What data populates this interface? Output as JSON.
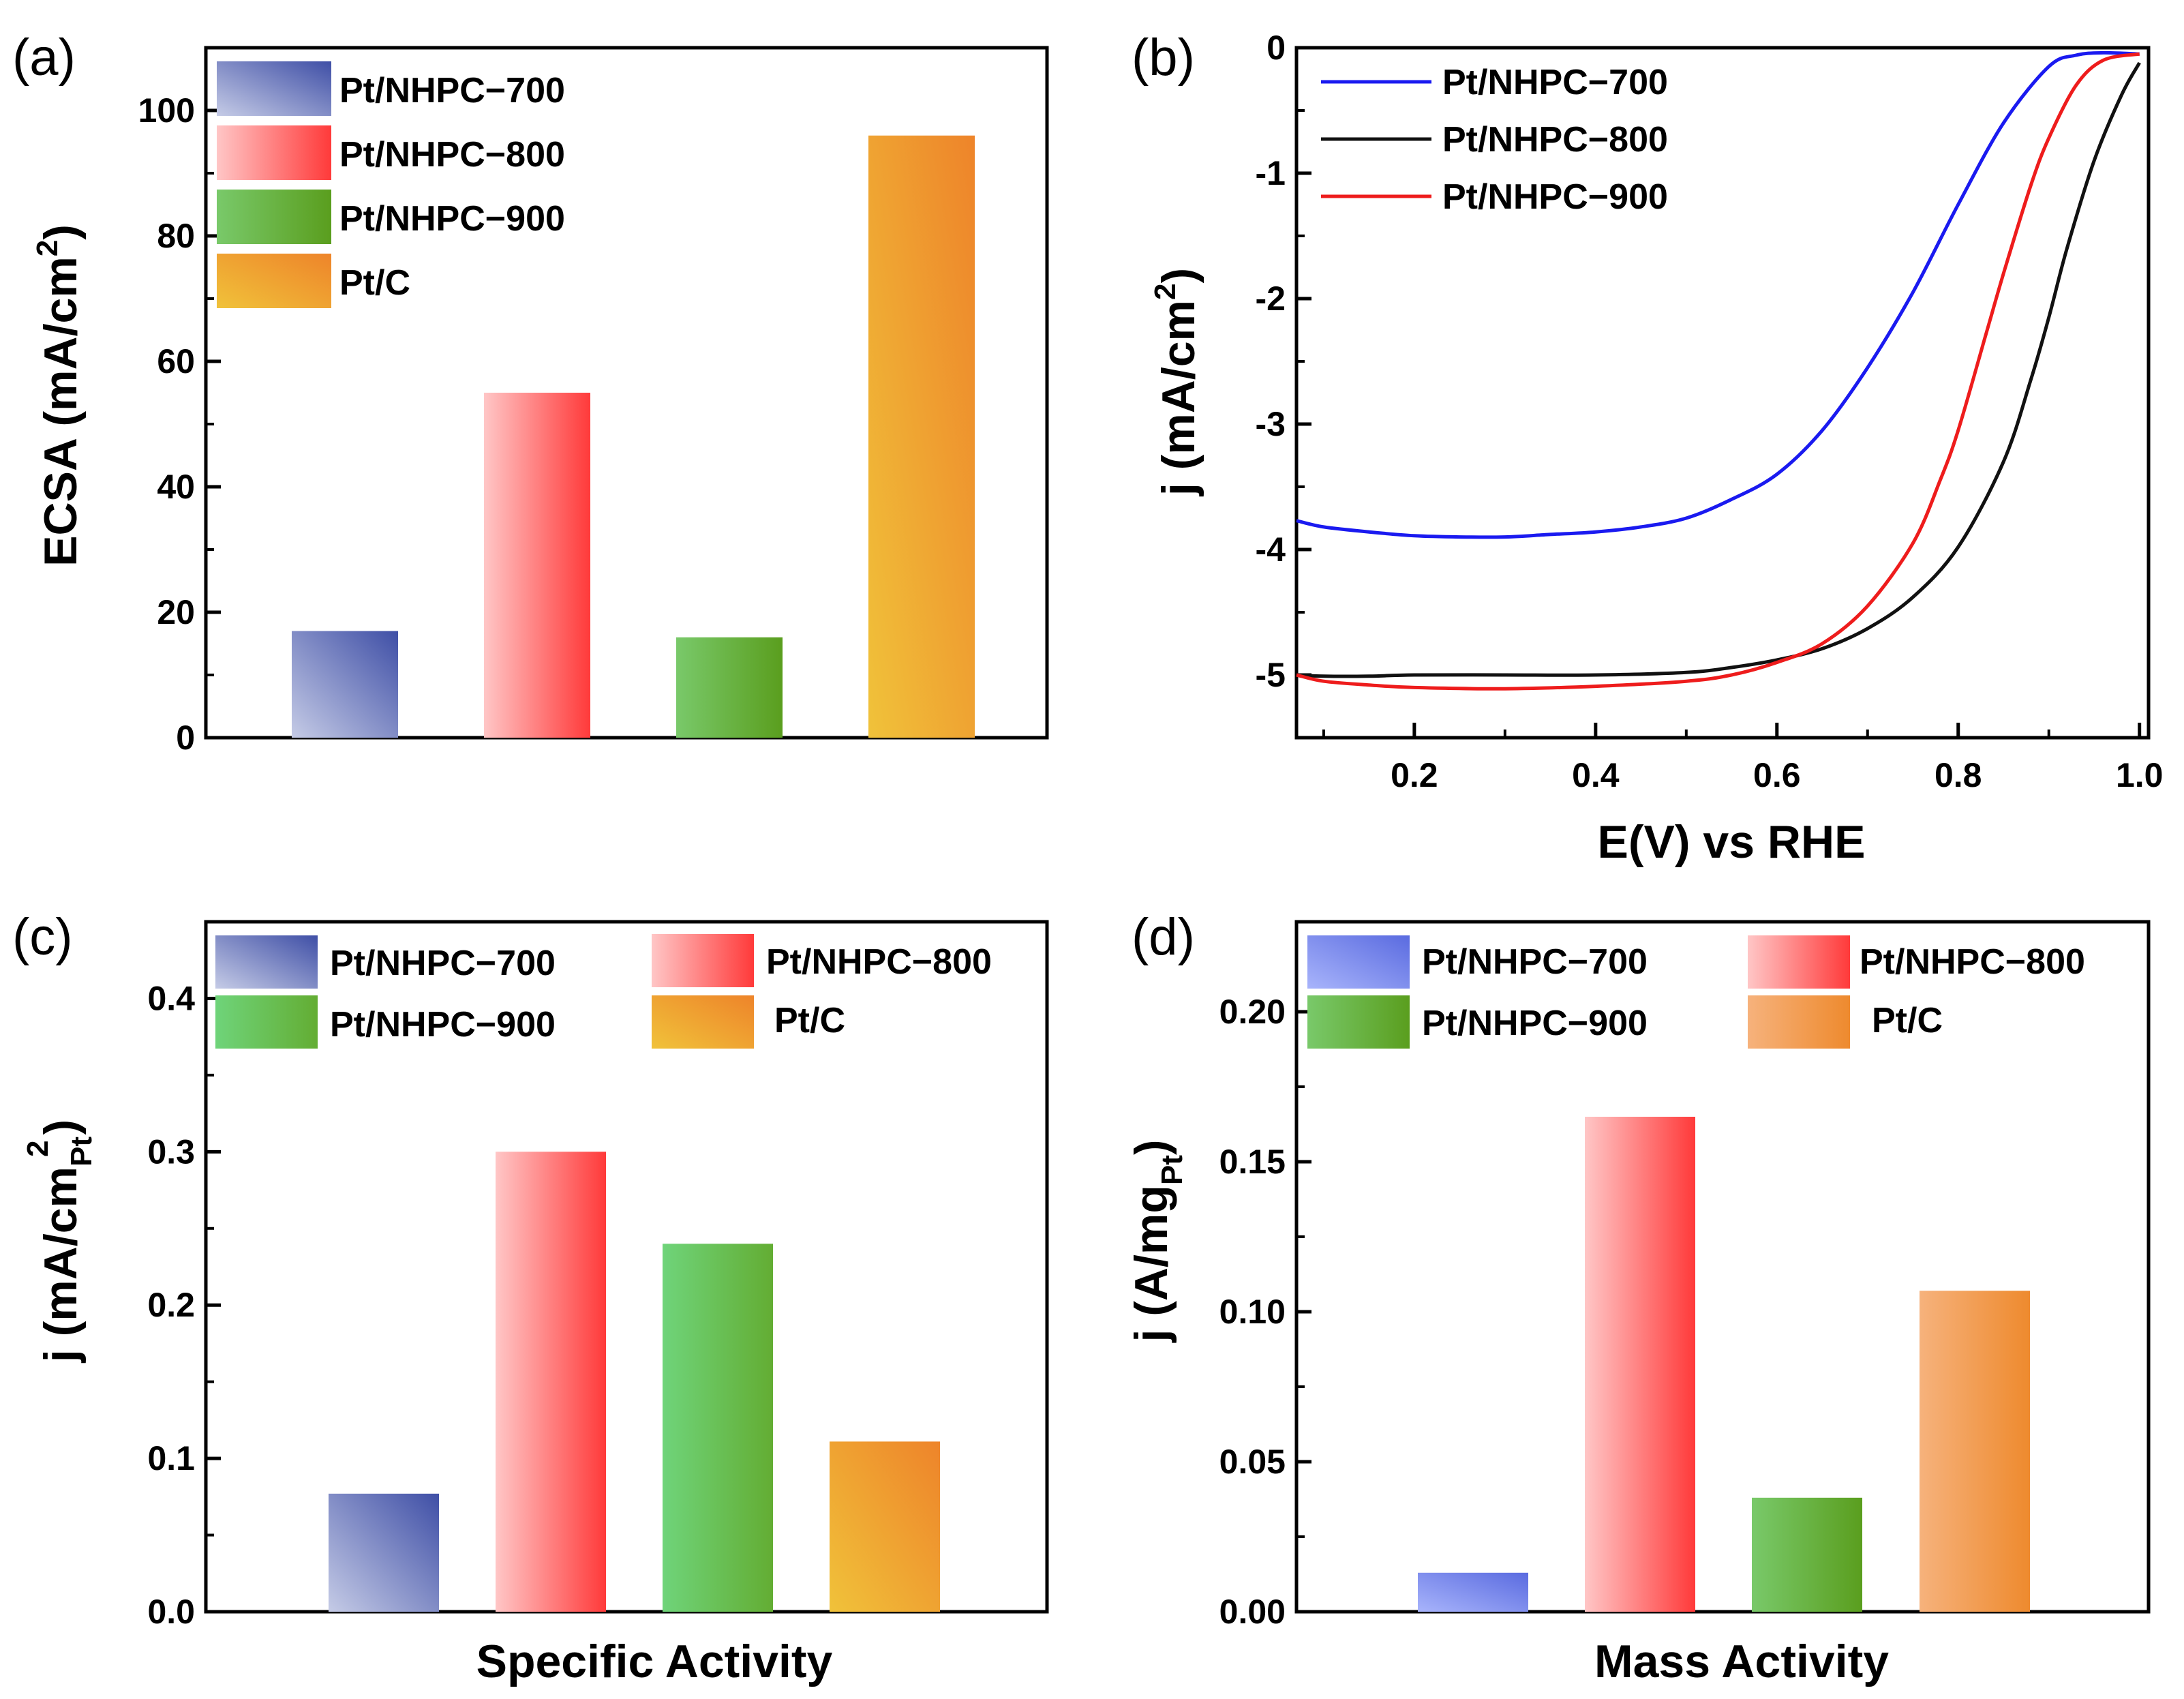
{
  "colors": {
    "pt_nhpc_700_bar": [
      "#c5cbe6",
      "#3f4fa6"
    ],
    "pt_nhpc_800_bar": [
      "#ffc3c3",
      "#ff3c3c"
    ],
    "pt_nhpc_900_bar": [
      "#6fd47a",
      "#5a9e1e"
    ],
    "pt_c_bar": [
      "#f0c23a",
      "#ee8a2e"
    ],
    "pt_nhpc_700_bar_d": [
      "#a0aefb",
      "#5a6fe2"
    ],
    "pt_c_bar_d": [
      "#f6b079",
      "#ee8a2e"
    ],
    "line_700": "#1a1af0",
    "line_800": "#111111",
    "line_900": "#ee1c1c"
  },
  "chart_data": [
    {
      "panel": "(a)",
      "type": "bar",
      "categories": [
        "Pt/NHPC−700",
        "Pt/NHPC−800",
        "Pt/NHPC−900",
        "Pt/C"
      ],
      "values": [
        17,
        55,
        16,
        96
      ],
      "xlabel": "",
      "ylabel_main": "ECSA (mA/cm",
      "ylabel_sup": "2",
      "ylabel_end": ")",
      "ylim": [
        0,
        110
      ],
      "yticks": [
        0,
        20,
        40,
        60,
        80,
        100
      ],
      "ytick_labels": [
        "0",
        "20",
        "40",
        "60",
        "80",
        "100"
      ],
      "legend": [
        "Pt/NHPC−700",
        "Pt/NHPC−800",
        "Pt/NHPC−900",
        "Pt/C"
      ],
      "legend_position": "top-left"
    },
    {
      "panel": "(b)",
      "type": "line",
      "xlabel": "E(V) vs RHE",
      "ylabel_main": "j (mA/cm",
      "ylabel_sup": "2",
      "ylabel_end": ")",
      "xlim": [
        0.07,
        1.01
      ],
      "ylim": [
        -5.5,
        0
      ],
      "xticks": [
        0.2,
        0.4,
        0.6,
        0.8,
        1.0
      ],
      "xtick_labels": [
        "0.2",
        "0.4",
        "0.6",
        "0.8",
        "1.0"
      ],
      "yticks": [
        -5,
        -4,
        -3,
        -2,
        -1,
        0
      ],
      "ytick_labels": [
        "-5",
        "-4",
        "-3",
        "-2",
        "-1",
        "0"
      ],
      "legend_position": "top-left",
      "series": [
        {
          "name": "Pt/NHPC−700",
          "x": [
            0.07,
            0.1,
            0.15,
            0.2,
            0.25,
            0.3,
            0.35,
            0.4,
            0.45,
            0.5,
            0.55,
            0.6,
            0.65,
            0.7,
            0.75,
            0.8,
            0.85,
            0.9,
            0.93,
            0.96,
            1.0
          ],
          "y": [
            -3.77,
            -3.82,
            -3.86,
            -3.89,
            -3.9,
            -3.9,
            -3.88,
            -3.86,
            -3.82,
            -3.75,
            -3.6,
            -3.4,
            -3.05,
            -2.55,
            -1.95,
            -1.25,
            -0.6,
            -0.15,
            -0.06,
            -0.04,
            -0.05
          ]
        },
        {
          "name": "Pt/NHPC−800",
          "x": [
            0.07,
            0.1,
            0.15,
            0.2,
            0.3,
            0.4,
            0.5,
            0.55,
            0.6,
            0.65,
            0.7,
            0.75,
            0.8,
            0.85,
            0.88,
            0.9,
            0.92,
            0.95,
            0.98,
            1.0
          ],
          "y": [
            -5.0,
            -5.01,
            -5.01,
            -5.0,
            -5.0,
            -5.0,
            -4.98,
            -4.94,
            -4.88,
            -4.79,
            -4.63,
            -4.38,
            -3.98,
            -3.3,
            -2.65,
            -2.15,
            -1.6,
            -0.9,
            -0.38,
            -0.12
          ]
        },
        {
          "name": "Pt/NHPC−900",
          "x": [
            0.07,
            0.1,
            0.15,
            0.2,
            0.3,
            0.4,
            0.5,
            0.55,
            0.6,
            0.65,
            0.7,
            0.75,
            0.78,
            0.8,
            0.83,
            0.85,
            0.88,
            0.9,
            0.93,
            0.96,
            1.0
          ],
          "y": [
            -5.0,
            -5.05,
            -5.08,
            -5.1,
            -5.11,
            -5.09,
            -5.05,
            -5.0,
            -4.9,
            -4.75,
            -4.45,
            -3.95,
            -3.45,
            -3.05,
            -2.3,
            -1.8,
            -1.1,
            -0.72,
            -0.3,
            -0.1,
            -0.05
          ]
        }
      ]
    },
    {
      "panel": "(c)",
      "type": "bar",
      "categories": [
        "Pt/NHPC−700",
        "Pt/NHPC−800",
        "Pt/NHPC−900",
        "Pt/C"
      ],
      "values": [
        0.077,
        0.3,
        0.24,
        0.111
      ],
      "xlabel": "Specific Activity",
      "ylabel_main": "j (mA/cm",
      "ylabel_sub": "Pt",
      "ylabel_sup": "2",
      "ylabel_end": ")",
      "ylim": [
        0,
        0.45
      ],
      "yticks": [
        0.0,
        0.1,
        0.2,
        0.3,
        0.4
      ],
      "ytick_labels": [
        "0.0",
        "0.1",
        "0.2",
        "0.3",
        "0.4"
      ],
      "legend": [
        "Pt/NHPC−700",
        "Pt/NHPC−800",
        "Pt/NHPC−900",
        "Pt/C"
      ],
      "legend_position": "top"
    },
    {
      "panel": "(d)",
      "type": "bar",
      "categories": [
        "Pt/NHPC−700",
        "Pt/NHPC−800",
        "Pt/NHPC−900",
        "Pt/C"
      ],
      "values": [
        0.013,
        0.165,
        0.038,
        0.107
      ],
      "xlabel": "Mass Activity",
      "ylabel_main": "j (A/mg",
      "ylabel_sub": "Pt",
      "ylabel_end": ")",
      "ylim": [
        0,
        0.23
      ],
      "yticks": [
        0.0,
        0.05,
        0.1,
        0.15,
        0.2
      ],
      "ytick_labels": [
        "0.00",
        "0.05",
        "0.10",
        "0.15",
        "0.20"
      ],
      "legend": [
        "Pt/NHPC−700",
        "Pt/NHPC−800",
        "Pt/NHPC−900",
        "Pt/C"
      ],
      "legend_position": "top"
    }
  ]
}
